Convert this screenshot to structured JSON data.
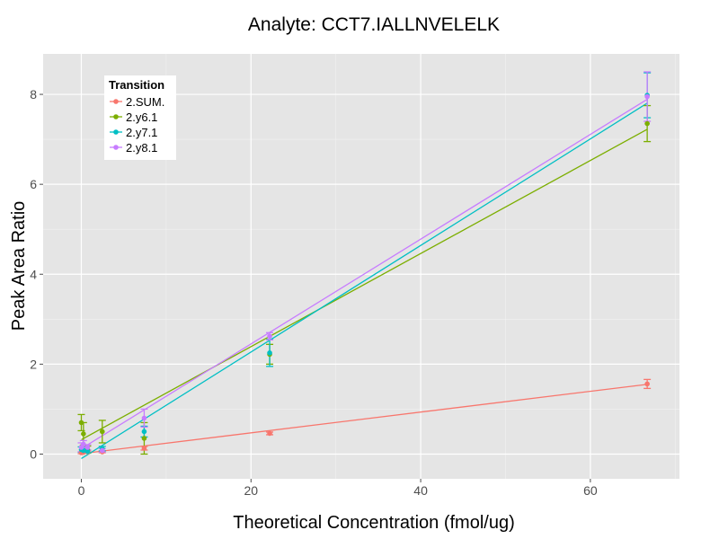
{
  "chart_data": {
    "type": "scatter",
    "title": "Analyte: CCT7.IALLNVELELK",
    "xlabel": "Theoretical Concentration (fmol/ug)",
    "ylabel": "Peak Area Ratio",
    "xlim": [
      -4.5,
      70.5
    ],
    "ylim": [
      -0.55,
      8.9
    ],
    "xticks": [
      0,
      20,
      40,
      60
    ],
    "yticks": [
      0,
      2,
      4,
      6,
      8
    ],
    "grid": true,
    "legend_position": "top-left",
    "legend_title": "Transition",
    "series": [
      {
        "name": "2.SUM.",
        "color": "#F8766D",
        "points": [
          {
            "x": 0,
            "y": 0.03,
            "err": 0.02
          },
          {
            "x": 0.25,
            "y": 0.04,
            "err": 0.02
          },
          {
            "x": 0.74,
            "y": 0.05,
            "err": 0.02
          },
          {
            "x": 2.47,
            "y": 0.05,
            "err": 0.02
          },
          {
            "x": 7.41,
            "y": 0.13,
            "err": 0.04
          },
          {
            "x": 22.2,
            "y": 0.46,
            "err": 0.03
          },
          {
            "x": 66.7,
            "y": 1.56,
            "err": 0.1
          }
        ],
        "fit": {
          "intercept": 0.01,
          "slope": 0.0231
        }
      },
      {
        "name": "2.y6.1",
        "color": "#7CAE00",
        "points": [
          {
            "x": 0,
            "y": 0.7,
            "err": 0.18
          },
          {
            "x": 0.25,
            "y": 0.45,
            "err": 0.25
          },
          {
            "x": 0.74,
            "y": 0.1,
            "err": 0.08
          },
          {
            "x": 2.47,
            "y": 0.5,
            "err": 0.25
          },
          {
            "x": 7.41,
            "y": 0.35,
            "err": 0.35
          },
          {
            "x": 22.2,
            "y": 2.22,
            "err": 0.22
          },
          {
            "x": 66.7,
            "y": 7.35,
            "err": 0.4
          }
        ],
        "fit": {
          "intercept": 0.32,
          "slope": 0.1035
        }
      },
      {
        "name": "2.y7.1",
        "color": "#00BFC4",
        "points": [
          {
            "x": 0,
            "y": 0.1,
            "err": 0.06
          },
          {
            "x": 0.25,
            "y": 0.08,
            "err": 0.05
          },
          {
            "x": 0.74,
            "y": 0.06,
            "err": 0.03
          },
          {
            "x": 2.47,
            "y": 0.12,
            "err": 0.05
          },
          {
            "x": 7.41,
            "y": 0.5,
            "err": 0.12
          },
          {
            "x": 22.2,
            "y": 2.25,
            "err": 0.3
          },
          {
            "x": 66.7,
            "y": 7.98,
            "err": 0.5
          }
        ],
        "fit": {
          "intercept": -0.1,
          "slope": 0.1185
        }
      },
      {
        "name": "2.y8.1",
        "color": "#C77CFF",
        "points": [
          {
            "x": 0,
            "y": 0.15,
            "err": 0.1
          },
          {
            "x": 0.25,
            "y": 0.22,
            "err": 0.08
          },
          {
            "x": 0.74,
            "y": 0.15,
            "err": 0.06
          },
          {
            "x": 2.47,
            "y": 0.08,
            "err": 0.04
          },
          {
            "x": 7.41,
            "y": 0.8,
            "err": 0.2
          },
          {
            "x": 22.2,
            "y": 2.62,
            "err": 0.08
          },
          {
            "x": 66.7,
            "y": 7.95,
            "err": 0.55
          }
        ],
        "fit": {
          "intercept": 0.12,
          "slope": 0.1165
        }
      }
    ]
  }
}
